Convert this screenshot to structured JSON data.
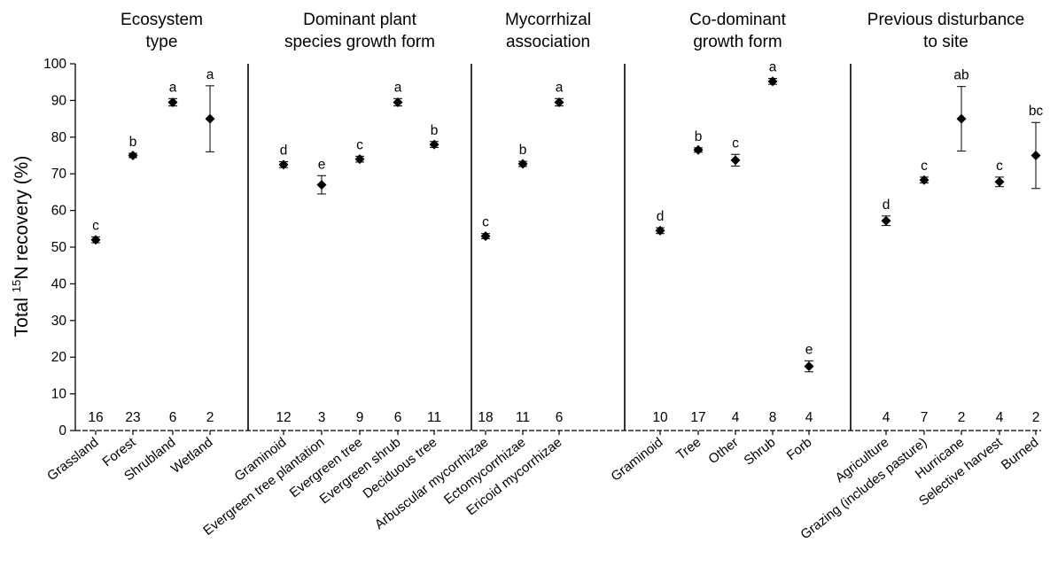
{
  "chart_data": {
    "type": "scatter",
    "ylabel_prefix": "Total ",
    "ylabel_sup": "15",
    "ylabel_suffix": "N recovery (%)",
    "ylim": [
      0,
      100
    ],
    "yticks": [
      0,
      10,
      20,
      30,
      40,
      50,
      60,
      70,
      80,
      90,
      100
    ],
    "panels": [
      {
        "title_lines": [
          "Ecosystem",
          "type"
        ],
        "points": [
          {
            "category": "Grassland",
            "y": 52,
            "err": 0.8,
            "letter": "c",
            "n": "16"
          },
          {
            "category": "Forest",
            "y": 75,
            "err": 0.6,
            "letter": "b",
            "n": "23"
          },
          {
            "category": "Shrubland",
            "y": 89.5,
            "err": 1.0,
            "letter": "a",
            "n": "6"
          },
          {
            "category": "Wetland",
            "y": 85,
            "err": 9,
            "letter": "a",
            "n": "2"
          }
        ]
      },
      {
        "title_lines": [
          "Dominant plant",
          "species growth form"
        ],
        "points": [
          {
            "category": "Graminoid",
            "y": 72.5,
            "err": 0.8,
            "letter": "d",
            "n": "12"
          },
          {
            "category": "Evergreen tree plantation",
            "y": 67,
            "err": 2.5,
            "letter": "e",
            "n": "3"
          },
          {
            "category": "Evergreen tree",
            "y": 74,
            "err": 0.8,
            "letter": "c",
            "n": "9"
          },
          {
            "category": "Evergreen shrub",
            "y": 89.5,
            "err": 1.0,
            "letter": "a",
            "n": "6"
          },
          {
            "category": "Deciduous tree",
            "y": 78,
            "err": 0.8,
            "letter": "b",
            "n": "11"
          }
        ]
      },
      {
        "title_lines": [
          "Mycorrhizal",
          "association"
        ],
        "points": [
          {
            "category": "Arbuscular mycorrhizae",
            "y": 53,
            "err": 0.7,
            "letter": "c",
            "n": "18"
          },
          {
            "category": "Ectomycorrhizae",
            "y": 72.7,
            "err": 0.7,
            "letter": "b",
            "n": "11"
          },
          {
            "category": "Ericoid mycorrhizae",
            "y": 89.5,
            "err": 1.0,
            "letter": "a",
            "n": "6"
          }
        ]
      },
      {
        "title_lines": [
          "Co-dominant",
          "growth form"
        ],
        "points": [
          {
            "category": "Graminoid",
            "y": 54.5,
            "err": 0.8,
            "letter": "d",
            "n": "10"
          },
          {
            "category": "Tree",
            "y": 76.5,
            "err": 0.6,
            "letter": "b",
            "n": "17"
          },
          {
            "category": "Other",
            "y": 73.7,
            "err": 1.6,
            "letter": "c",
            "n": "4"
          },
          {
            "category": "Shrub",
            "y": 95.2,
            "err": 0.8,
            "letter": "a",
            "n": "8"
          },
          {
            "category": "Forb",
            "y": 17.5,
            "err": 1.5,
            "letter": "e",
            "n": "4"
          }
        ]
      },
      {
        "title_lines": [
          "Previous disturbance",
          "to site"
        ],
        "points": [
          {
            "category": "Agriculture",
            "y": 57.2,
            "err": 1.3,
            "letter": "d",
            "n": "4"
          },
          {
            "category": "Grazing (includes pasture)",
            "y": 68.3,
            "err": 0.8,
            "letter": "c",
            "n": "7"
          },
          {
            "category": "Hurricane",
            "y": 85,
            "err": 8.8,
            "letter": "ab",
            "n": "2"
          },
          {
            "category": "Selective harvest",
            "y": 67.8,
            "err": 1.3,
            "letter": "c",
            "n": "4"
          },
          {
            "category": "Burned",
            "y": 75,
            "err": 9,
            "letter": "bc",
            "n": "2"
          }
        ]
      }
    ]
  }
}
